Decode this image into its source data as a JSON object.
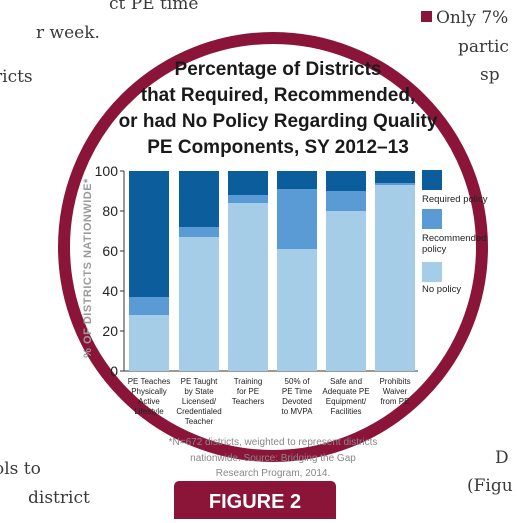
{
  "background": {
    "left_lines": [
      "ct PE time",
      "r week.",
      "ricts",
      "ols to",
      "district"
    ],
    "right_lines": [
      "Only 7%",
      "partic",
      "sp",
      "D",
      "(Figu"
    ]
  },
  "figure_label": "FIGURE 2",
  "colors": {
    "required": "#0b5d9c",
    "recommended": "#5b9bd5",
    "no_policy": "#a6cde8",
    "frame": "#8a1538"
  },
  "chart_data": {
    "type": "bar",
    "stacked": true,
    "title_lines": [
      "Percentage of Districts",
      "that Required, Recommended,",
      "or had No Policy Regarding Quality",
      "PE Components, SY 2012–13"
    ],
    "ylabel": "% OF DISTRICTS NATIONWIDE*",
    "ylim": [
      0,
      100
    ],
    "yticks": [
      0,
      20,
      40,
      60,
      80,
      100
    ],
    "categories": [
      [
        "PE Teaches",
        "Physically",
        "Active",
        "Lifestyle"
      ],
      [
        "PE Taught",
        "by State",
        "Licensed/",
        "Credentialed",
        "Teacher"
      ],
      [
        "Training",
        "for PE",
        "Teachers"
      ],
      [
        "50% of",
        "PE Time",
        "Devoted",
        "to MVPA"
      ],
      [
        "Safe and",
        "Adequate PE",
        "Equipment/",
        "Facilities"
      ],
      [
        "Prohibits",
        "Waiver",
        "from PE"
      ]
    ],
    "series": [
      {
        "name": "No policy",
        "values": [
          28,
          67,
          84,
          61,
          80,
          93
        ]
      },
      {
        "name": "Recommended policy",
        "values": [
          9,
          5,
          4,
          30,
          10,
          1
        ]
      },
      {
        "name": "Required policy",
        "values": [
          63,
          28,
          12,
          9,
          10,
          6
        ]
      }
    ],
    "legend": [
      {
        "label": "Required policy",
        "key": "required"
      },
      {
        "label": [
          "Recommended",
          "policy"
        ],
        "key": "recommended"
      },
      {
        "label": "No policy",
        "key": "no_policy"
      }
    ],
    "legend_position": "right",
    "note_lines": [
      "*N=672 districts, weighted to represent districts",
      "nationwide. Source: Bridging the Gap",
      "Research Program, 2014."
    ]
  }
}
